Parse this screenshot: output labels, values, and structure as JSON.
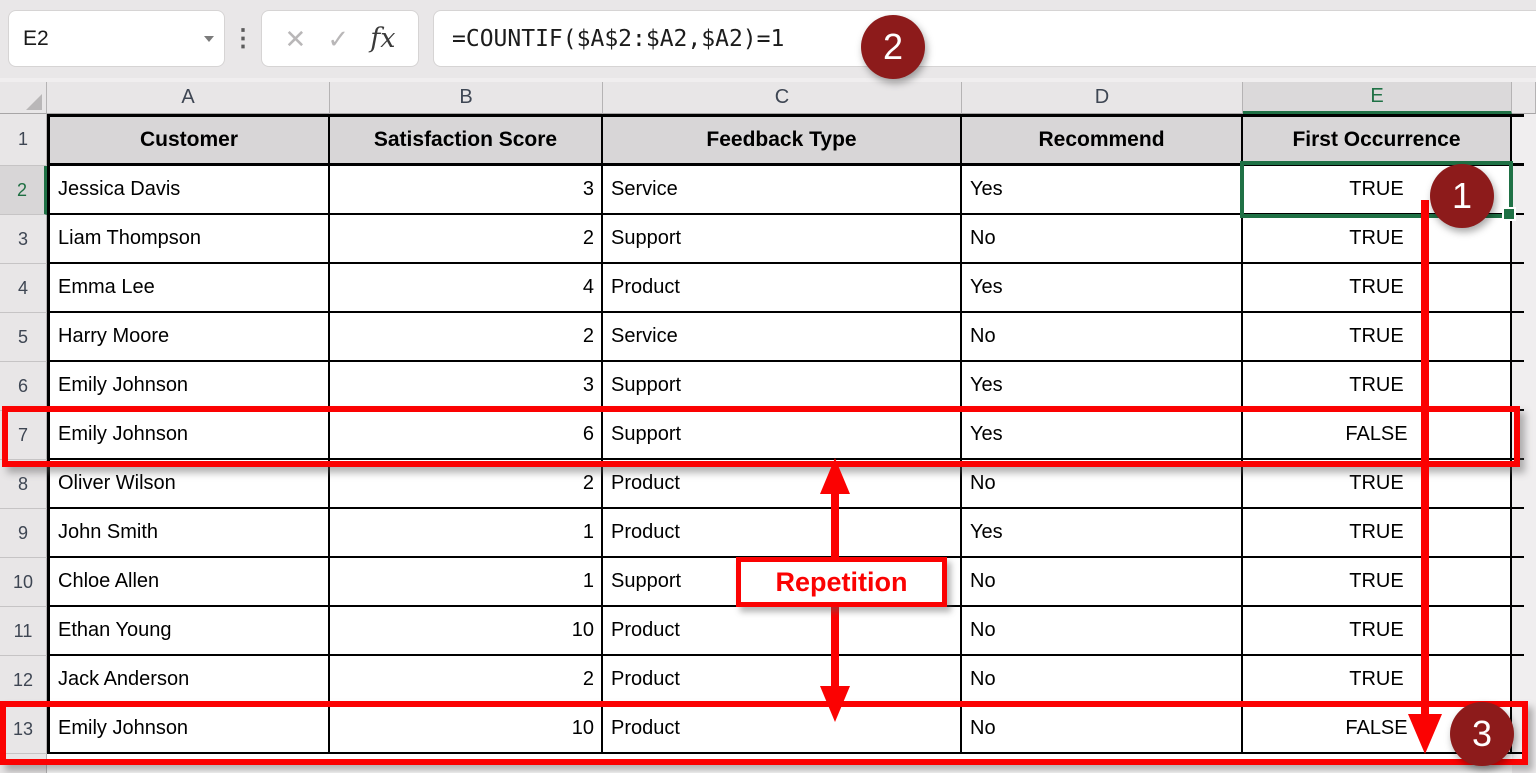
{
  "colors": {
    "selection_green": "#1F7145",
    "annotation_red": "#FB0202",
    "badge_maroon": "#8D1B1B"
  },
  "formula_bar": {
    "name_box_value": "E2",
    "separator_icon": "⋮",
    "cancel_icon": "✕",
    "enter_icon": "✓",
    "fx_icon": "fx",
    "formula": "=COUNTIF($A$2:$A2,$A2)=1"
  },
  "grid": {
    "column_letters": [
      "A",
      "B",
      "C",
      "D",
      "E"
    ],
    "selected_column": "E",
    "selected_cell": "E2",
    "header_row": {
      "n": "1",
      "customer": "Customer",
      "score": "Satisfaction Score",
      "feedback": "Feedback Type",
      "recommend": "Recommend",
      "first": "First Occurrence"
    },
    "rows": [
      {
        "n": "2",
        "customer": "Jessica Davis",
        "score": "3",
        "feedback": "Service",
        "recommend": "Yes",
        "first": "TRUE"
      },
      {
        "n": "3",
        "customer": "Liam Thompson",
        "score": "2",
        "feedback": "Support",
        "recommend": "No",
        "first": "TRUE"
      },
      {
        "n": "4",
        "customer": "Emma Lee",
        "score": "4",
        "feedback": "Product",
        "recommend": "Yes",
        "first": "TRUE"
      },
      {
        "n": "5",
        "customer": "Harry Moore",
        "score": "2",
        "feedback": "Service",
        "recommend": "No",
        "first": "TRUE"
      },
      {
        "n": "6",
        "customer": "Emily Johnson",
        "score": "3",
        "feedback": "Support",
        "recommend": "Yes",
        "first": "TRUE"
      },
      {
        "n": "7",
        "customer": "Emily Johnson",
        "score": "6",
        "feedback": "Support",
        "recommend": "Yes",
        "first": "FALSE"
      },
      {
        "n": "8",
        "customer": "Oliver Wilson",
        "score": "2",
        "feedback": "Product",
        "recommend": "No",
        "first": "TRUE"
      },
      {
        "n": "9",
        "customer": "John Smith",
        "score": "1",
        "feedback": "Product",
        "recommend": "Yes",
        "first": "TRUE"
      },
      {
        "n": "10",
        "customer": "Chloe Allen",
        "score": "1",
        "feedback": "Support",
        "recommend": "No",
        "first": "TRUE"
      },
      {
        "n": "11",
        "customer": "Ethan Young",
        "score": "10",
        "feedback": "Product",
        "recommend": "No",
        "first": "TRUE"
      },
      {
        "n": "12",
        "customer": "Jack Anderson",
        "score": "2",
        "feedback": "Product",
        "recommend": "No",
        "first": "TRUE"
      },
      {
        "n": "13",
        "customer": "Emily Johnson",
        "score": "10",
        "feedback": "Product",
        "recommend": "No",
        "first": "FALSE"
      }
    ]
  },
  "annotations": {
    "badge_1": "1",
    "badge_2": "2",
    "badge_3": "3",
    "repetition_label": "Repetition",
    "highlighted_rows": [
      "7",
      "13"
    ]
  }
}
